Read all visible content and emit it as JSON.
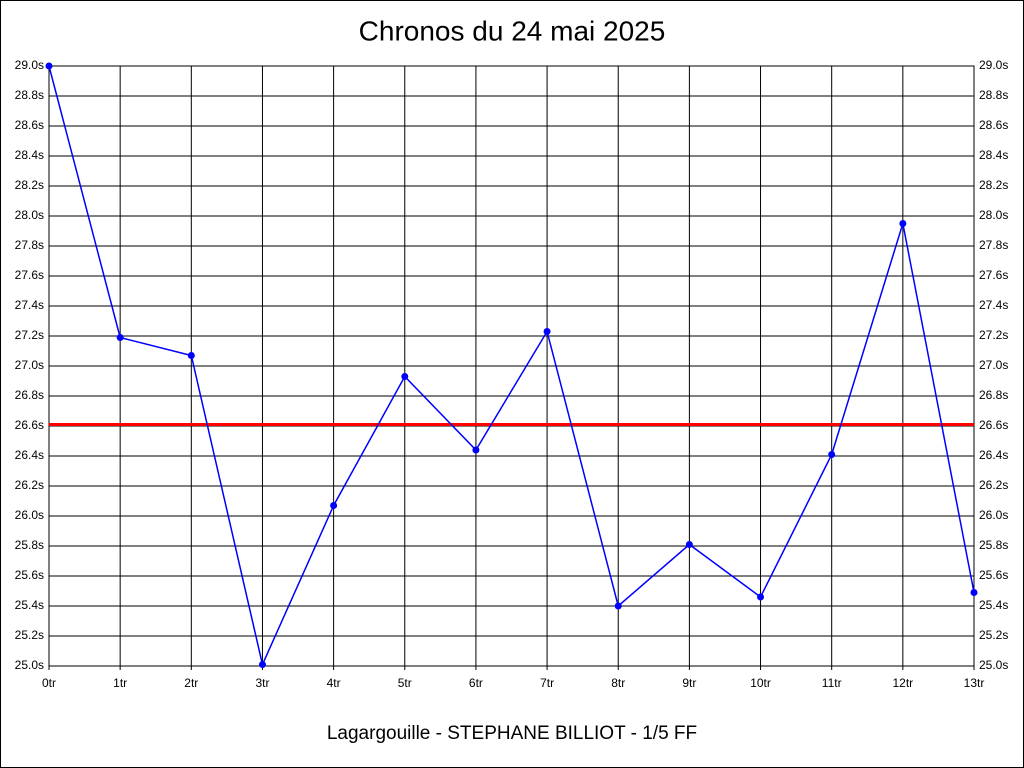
{
  "chart_data": {
    "type": "line",
    "title": "Chronos du 24 mai 2025",
    "subtitle": "Lagargouille - STEPHANE BILLIOT - 1/5 FF",
    "categories": [
      "0tr",
      "1tr",
      "2tr",
      "3tr",
      "4tr",
      "5tr",
      "6tr",
      "7tr",
      "8tr",
      "9tr",
      "10tr",
      "11tr",
      "12tr",
      "13tr"
    ],
    "values": [
      29.0,
      27.19,
      27.07,
      25.01,
      26.07,
      26.93,
      26.44,
      27.23,
      25.4,
      25.81,
      25.46,
      26.41,
      27.95,
      25.49
    ],
    "color": "#0000ff",
    "reference_line": 26.61,
    "reference_color": "#ff0000",
    "ylim": [
      25.0,
      29.0
    ],
    "yticks": [
      {
        "value": 25.0,
        "label": "25.0s"
      },
      {
        "value": 25.2,
        "label": "25.2s"
      },
      {
        "value": 25.4,
        "label": "25.4s"
      },
      {
        "value": 25.6,
        "label": "25.6s"
      },
      {
        "value": 25.8,
        "label": "25.8s"
      },
      {
        "value": 26.0,
        "label": "26.0s"
      },
      {
        "value": 26.2,
        "label": "26.2s"
      },
      {
        "value": 26.4,
        "label": "26.4s"
      },
      {
        "value": 26.6,
        "label": "26.6s"
      },
      {
        "value": 26.8,
        "label": "26.8s"
      },
      {
        "value": 27.0,
        "label": "27.0s"
      },
      {
        "value": 27.2,
        "label": "27.2s"
      },
      {
        "value": 27.4,
        "label": "27.4s"
      },
      {
        "value": 27.6,
        "label": "27.6s"
      },
      {
        "value": 27.8,
        "label": "27.8s"
      },
      {
        "value": 28.0,
        "label": "28.0s"
      },
      {
        "value": 28.2,
        "label": "28.2s"
      },
      {
        "value": 28.4,
        "label": "28.4s"
      },
      {
        "value": 28.6,
        "label": "28.6s"
      },
      {
        "value": 28.8,
        "label": "28.8s"
      },
      {
        "value": 29.0,
        "label": "29.0s"
      }
    ],
    "grid": true
  }
}
